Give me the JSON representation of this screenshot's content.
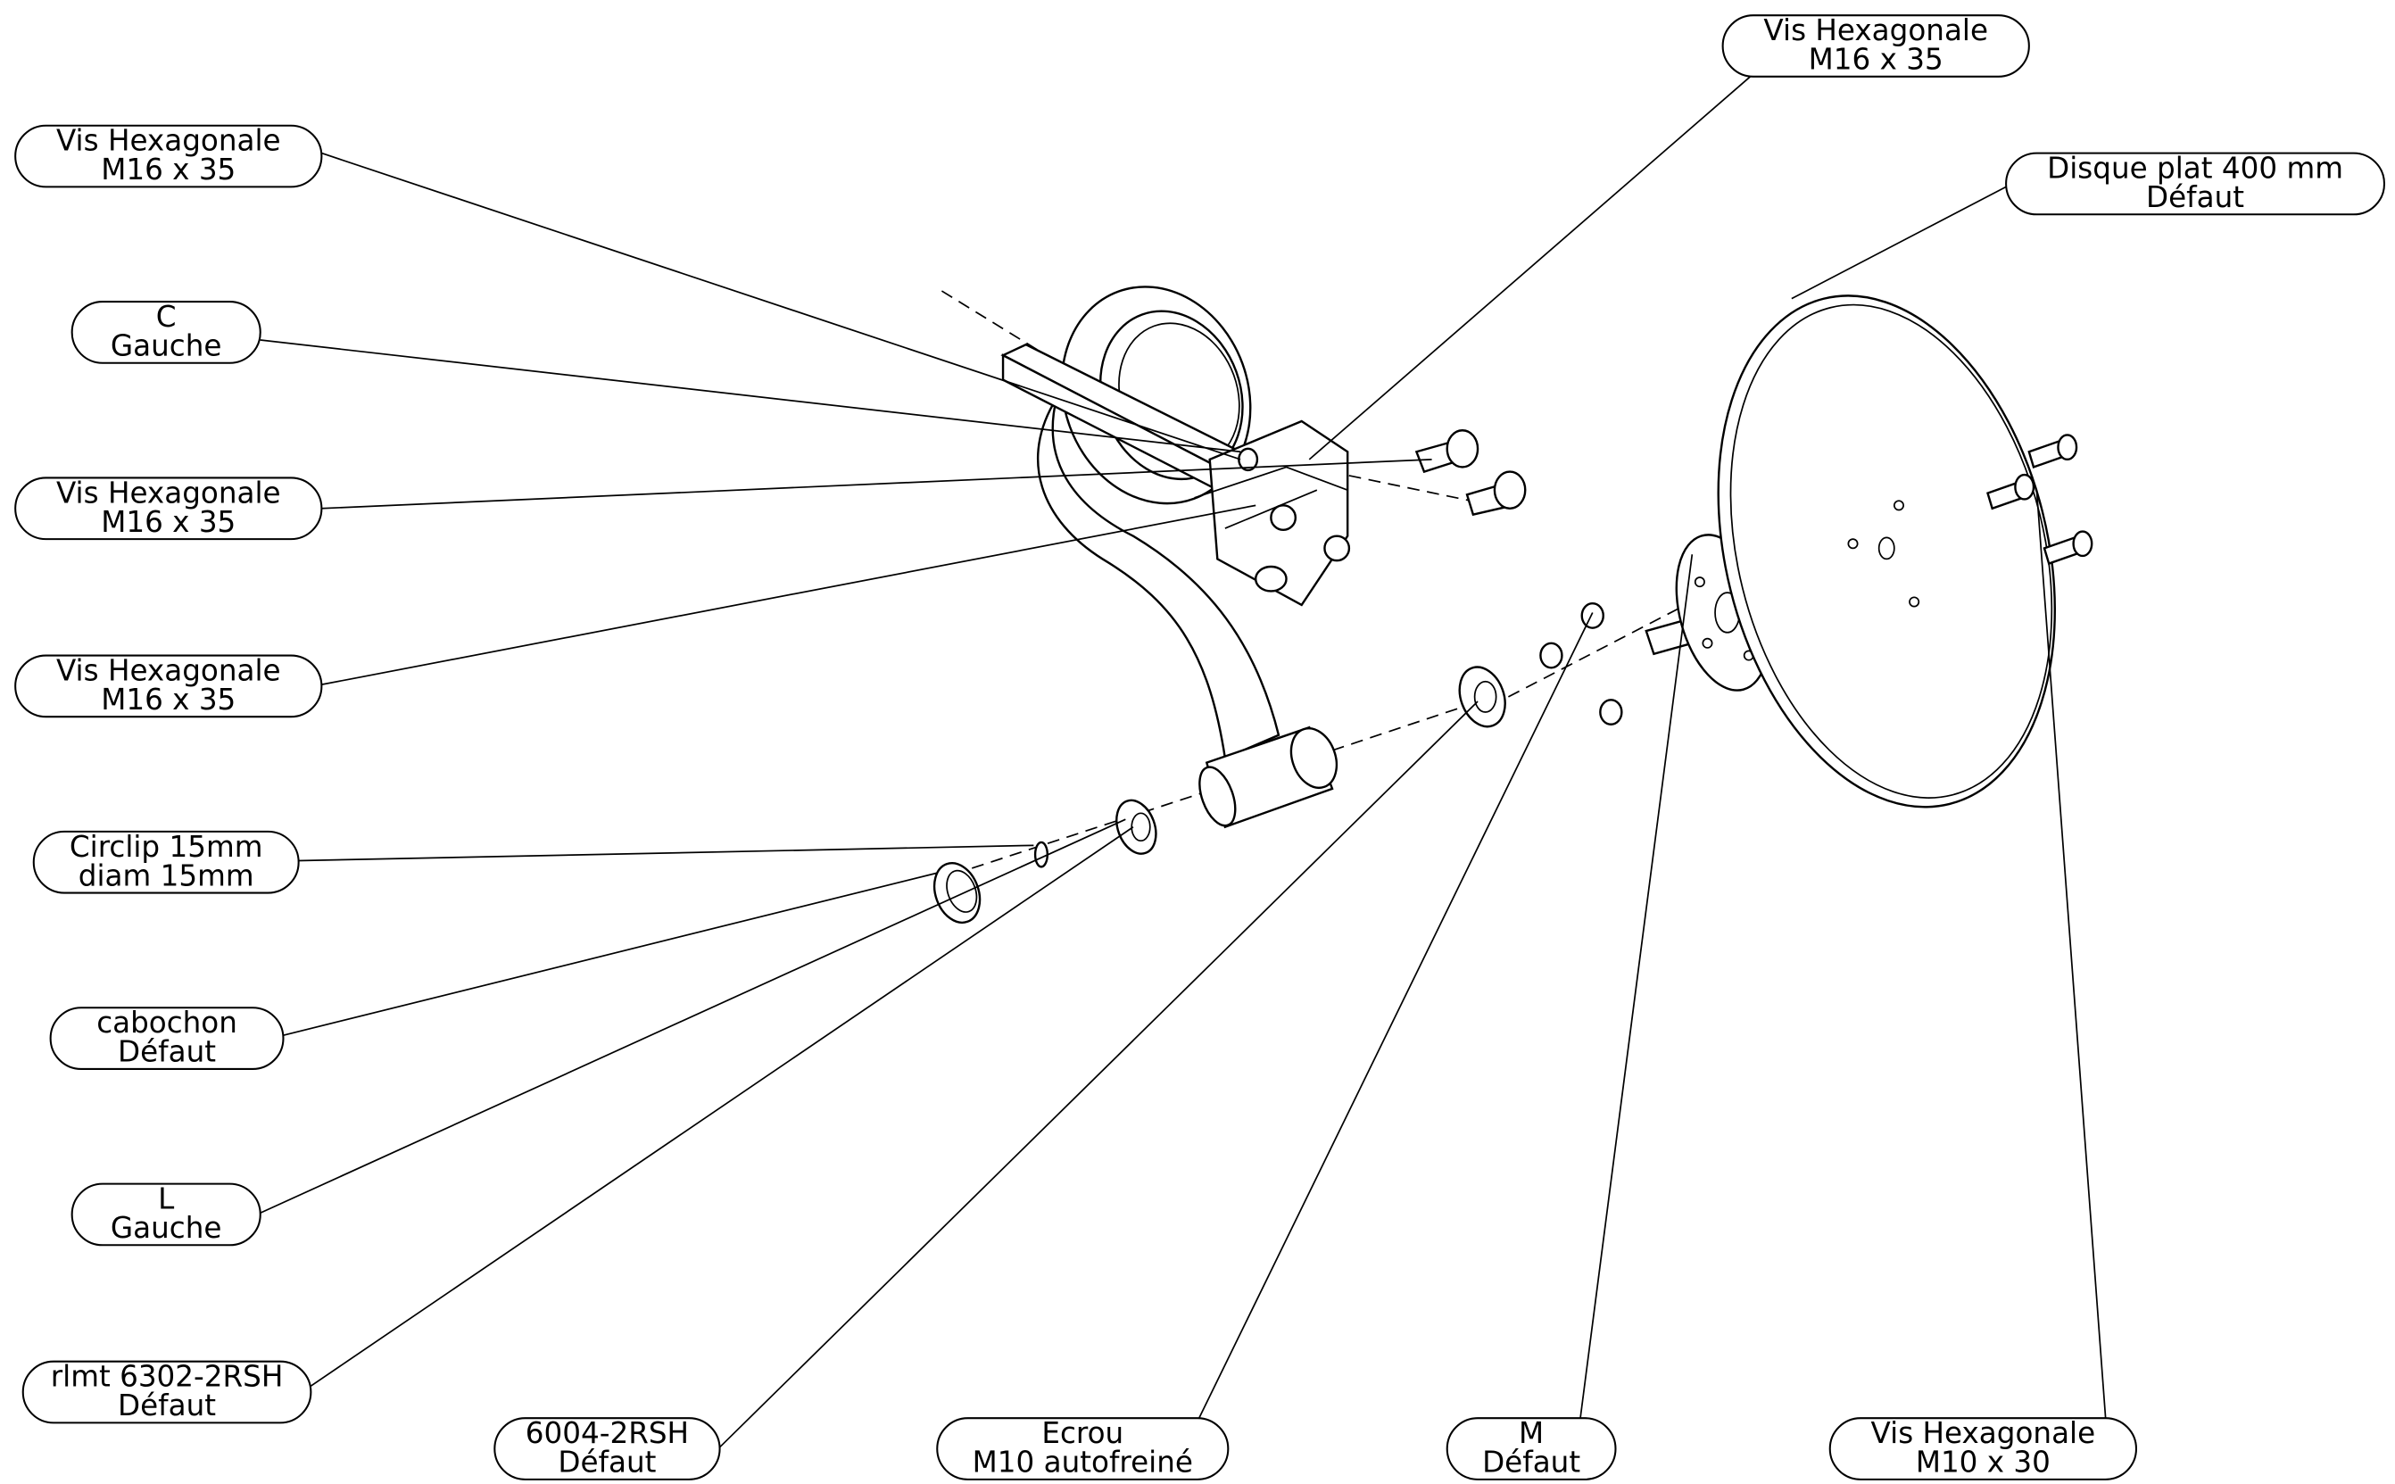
{
  "callouts": [
    {
      "line1": "Vis Hexagonale",
      "line2": "M16 x 35"
    },
    {
      "line1": "Vis Hexagonale",
      "line2": "M16 x 35"
    },
    {
      "line1": "C",
      "line2": "Gauche"
    },
    {
      "line1": "Vis Hexagonale",
      "line2": "M16 x 35"
    },
    {
      "line1": "Vis Hexagonale",
      "line2": "M16 x 35"
    },
    {
      "line1": "Circlip 15mm",
      "line2": "diam 15mm"
    },
    {
      "line1": "cabochon",
      "line2": "Défaut"
    },
    {
      "line1": "L",
      "line2": "Gauche"
    },
    {
      "line1": "rlmt 6302-2RSH",
      "line2": "Défaut"
    },
    {
      "line1": "6004-2RSH",
      "line2": "Défaut"
    },
    {
      "line1": "Ecrou",
      "line2": "M10 autofreiné"
    },
    {
      "line1": "M",
      "line2": "Défaut"
    },
    {
      "line1": "Vis Hexagonale",
      "line2": "M10 x 30"
    },
    {
      "line1": "Disque plat 400 mm",
      "line2": "Défaut"
    }
  ]
}
